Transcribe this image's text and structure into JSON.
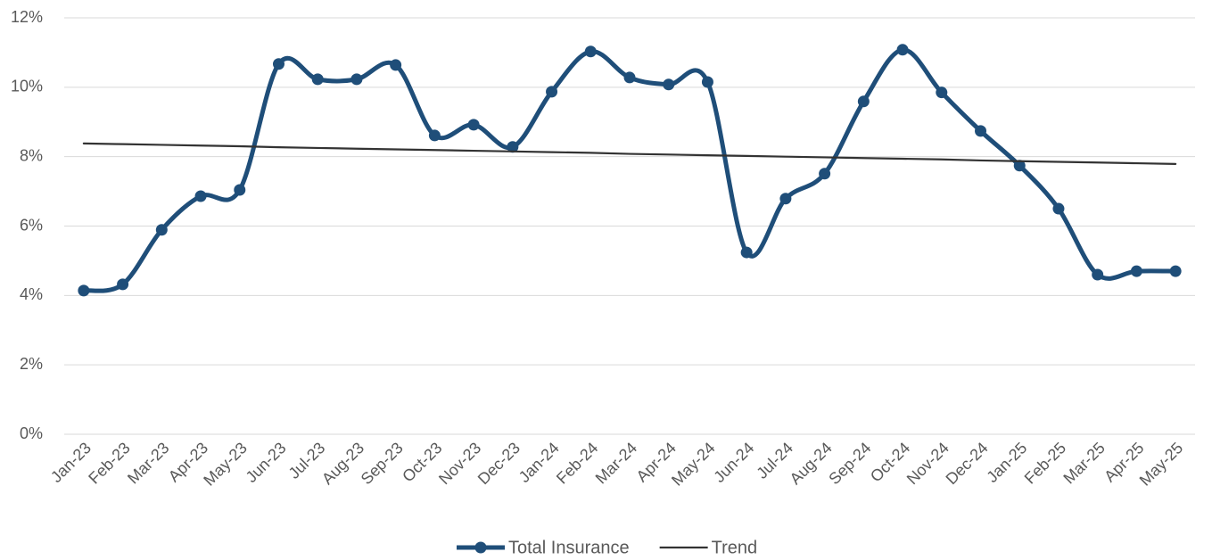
{
  "chart_data": {
    "type": "line",
    "categories": [
      "Jan-23",
      "Feb-23",
      "Mar-23",
      "Apr-23",
      "May-23",
      "Jun-23",
      "Jul-23",
      "Aug-23",
      "Sep-23",
      "Oct-23",
      "Nov-23",
      "Dec-23",
      "Jan-24",
      "Feb-24",
      "Mar-24",
      "Apr-24",
      "May-24",
      "Jun-24",
      "Jul-24",
      "Aug-24",
      "Sep-24",
      "Oct-24",
      "Nov-24",
      "Dec-24",
      "Jan-25",
      "Feb-25",
      "Mar-25",
      "Apr-25",
      "May-25"
    ],
    "series": [
      {
        "name": "Total Insurance",
        "color": "#1f4e79",
        "markers": true,
        "smooth": true,
        "values": [
          4.14,
          4.32,
          5.89,
          6.86,
          7.04,
          10.67,
          10.23,
          10.23,
          10.64,
          8.61,
          8.92,
          8.28,
          9.87,
          11.03,
          10.28,
          10.08,
          10.15,
          5.24,
          6.79,
          7.51,
          9.59,
          11.08,
          9.85,
          8.74,
          7.74,
          6.5,
          4.6,
          4.7,
          4.7
        ]
      },
      {
        "name": "Trend",
        "color": "#333333",
        "markers": false,
        "smooth": false,
        "values": [
          8.38,
          8.36,
          8.34,
          8.32,
          8.3,
          8.27,
          8.25,
          8.23,
          8.21,
          8.19,
          8.17,
          8.15,
          8.13,
          8.11,
          8.08,
          8.06,
          8.04,
          8.02,
          8.0,
          7.98,
          7.96,
          7.94,
          7.92,
          7.89,
          7.87,
          7.85,
          7.83,
          7.81,
          7.79
        ]
      }
    ],
    "ylim": [
      0,
      12
    ],
    "yticks": [
      {
        "value": 0,
        "label": "0%"
      },
      {
        "value": 2,
        "label": "2%"
      },
      {
        "value": 4,
        "label": "4%"
      },
      {
        "value": 6,
        "label": "6%"
      },
      {
        "value": 8,
        "label": "8%"
      },
      {
        "value": 10,
        "label": "10%"
      },
      {
        "value": 12,
        "label": "12%"
      }
    ],
    "grid": true,
    "legend": "bottom"
  }
}
